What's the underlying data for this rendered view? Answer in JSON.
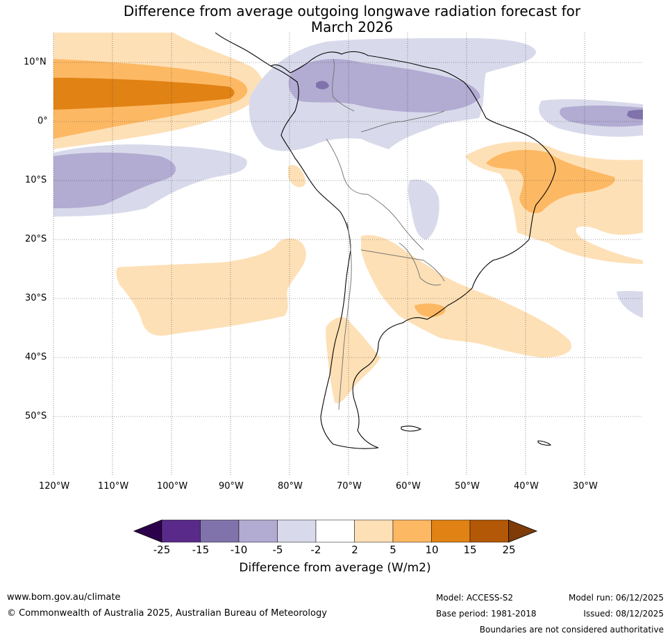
{
  "title_line1": "Difference from average outgoing longwave radiation forecast for",
  "title_line2": "March 2026",
  "lat_labels": [
    "10°N",
    "0°",
    "10°S",
    "20°S",
    "30°S",
    "40°S",
    "50°S"
  ],
  "lon_labels": [
    "120°W",
    "110°W",
    "100°W",
    "90°W",
    "80°W",
    "70°W",
    "60°W",
    "50°W",
    "40°W",
    "30°W"
  ],
  "colorbar": {
    "label": "Difference from average (W/m2)",
    "ticks": [
      "-25",
      "-15",
      "-10",
      "-5",
      "-2",
      "2",
      "5",
      "10",
      "15",
      "25"
    ],
    "colors": [
      "#2d004b",
      "#5a2a8a",
      "#8073ac",
      "#b2abd2",
      "#d8daeb",
      "#ffffff",
      "#fee0b6",
      "#fdb863",
      "#e08214",
      "#b35806",
      "#7f3b08"
    ]
  },
  "footer": {
    "website": "www.bom.gov.au/climate",
    "copyright": "© Commonwealth of Australia 2025, Australian Bureau of Meteorology",
    "model": "Model: ACCESS-S2",
    "base_period": "Base period: 1981-2018",
    "model_run": "Model run: 06/12/2025",
    "issued": "Issued: 08/12/2025",
    "disclaimer": "Boundaries are not considered authoritative"
  }
}
